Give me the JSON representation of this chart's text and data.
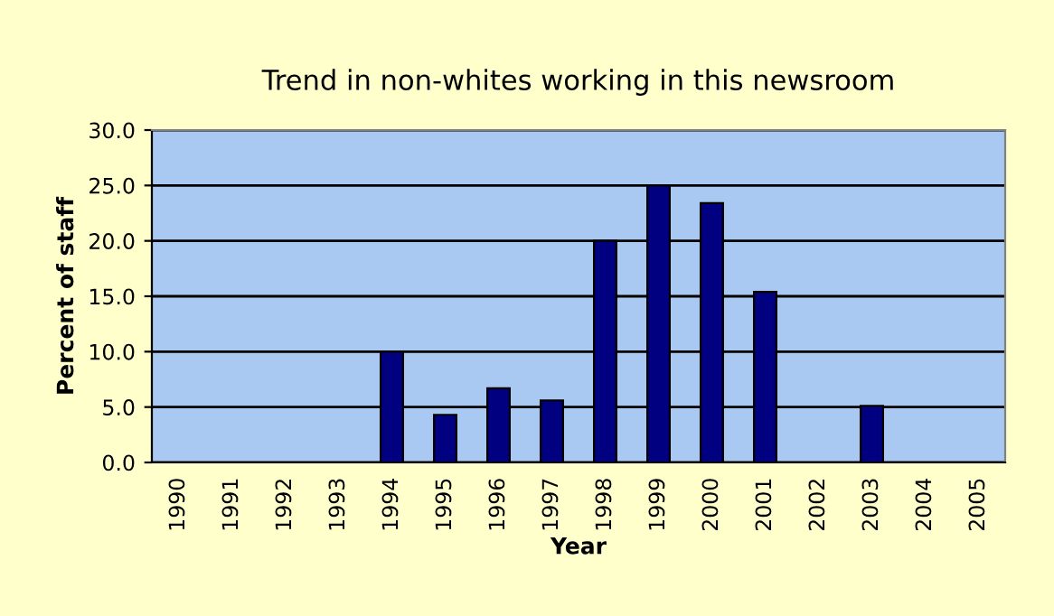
{
  "chart_data": {
    "type": "bar",
    "title": "Trend in non-whites working in this newsroom",
    "xlabel": "Year",
    "ylabel": "Percent of staff",
    "categories": [
      "1990",
      "1991",
      "1992",
      "1993",
      "1994",
      "1995",
      "1996",
      "1997",
      "1998",
      "1999",
      "2000",
      "2001",
      "2002",
      "2003",
      "2004",
      "2005"
    ],
    "values": [
      null,
      null,
      null,
      null,
      10.0,
      4.3,
      6.7,
      5.6,
      20.0,
      25.0,
      23.4,
      15.4,
      null,
      5.1,
      null,
      null
    ],
    "color": "#000080",
    "ylim": [
      0,
      30
    ],
    "yticks": [
      {
        "value": 0,
        "label": "0.0"
      },
      {
        "value": 5,
        "label": "5.0"
      },
      {
        "value": 10,
        "label": "10.0"
      },
      {
        "value": 15,
        "label": "15.0"
      },
      {
        "value": 20,
        "label": "20.0"
      },
      {
        "value": 25,
        "label": "25.0"
      },
      {
        "value": 30,
        "label": "30.0"
      }
    ],
    "grid": "y",
    "legend": false
  }
}
